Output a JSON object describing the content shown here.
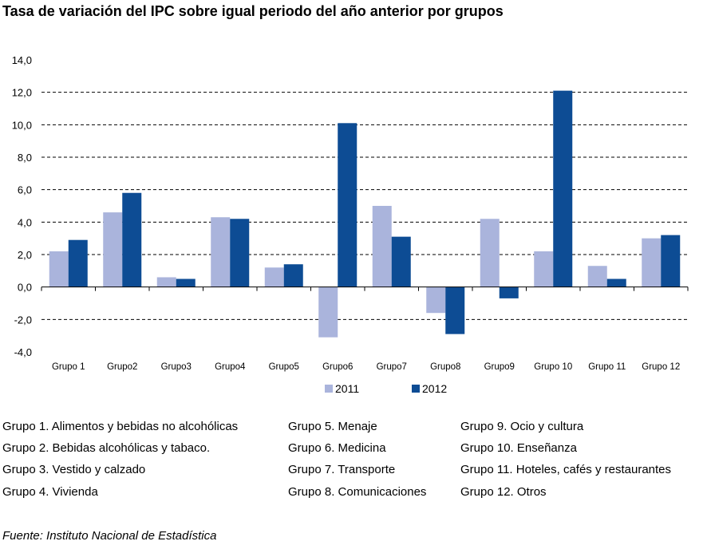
{
  "title": "Tasa de variación del IPC sobre igual periodo del año anterior por grupos",
  "colors": {
    "s2011": "#aab4dc",
    "s2012": "#0d4c94"
  },
  "chart_data": {
    "type": "bar",
    "title": "Tasa de variación del IPC sobre igual periodo del año anterior por grupos",
    "categories": [
      "Grupo 1",
      "Grupo2",
      "Grupo3",
      "Grupo4",
      "Grupo5",
      "Grupo6",
      "Grupo7",
      "Grupo8",
      "Grupo9",
      "Grupo 10",
      "Grupo 11",
      "Grupo 12"
    ],
    "series": [
      {
        "name": "2011",
        "values": [
          2.2,
          4.6,
          0.6,
          4.3,
          1.2,
          -3.1,
          5.0,
          -1.6,
          4.2,
          2.2,
          1.3,
          3.0
        ]
      },
      {
        "name": "2012",
        "values": [
          2.9,
          5.8,
          0.5,
          4.2,
          1.4,
          10.1,
          3.1,
          -2.9,
          -0.7,
          12.1,
          0.5,
          3.2
        ]
      }
    ],
    "yticks": [
      "14,0",
      "12,0",
      "10,0",
      "8,0",
      "6,0",
      "4,0",
      "2,0",
      "0,0",
      "-2,0",
      "-4,0"
    ],
    "ylim": [
      -4,
      14
    ],
    "grid": "dashed horizontal",
    "legend": "bottom-center"
  },
  "group_legend": [
    [
      "Grupo 1. Alimentos y bebidas no alcohólicas",
      "Grupo 2. Bebidas alcohólicas y  tabaco.",
      "Grupo 3. Vestido y calzado",
      "Grupo 4. Vivienda"
    ],
    [
      "Grupo 5. Menaje",
      "Grupo 6. Medicina",
      "Grupo 7. Transporte",
      "Grupo 8. Comunicaciones"
    ],
    [
      "Grupo 9. Ocio y cultura",
      "Grupo 10. Enseñanza",
      "Grupo 11. Hoteles, cafés y restaurantes",
      "Grupo 12. Otros"
    ]
  ],
  "source": "Fuente: Instituto Nacional de Estadística"
}
